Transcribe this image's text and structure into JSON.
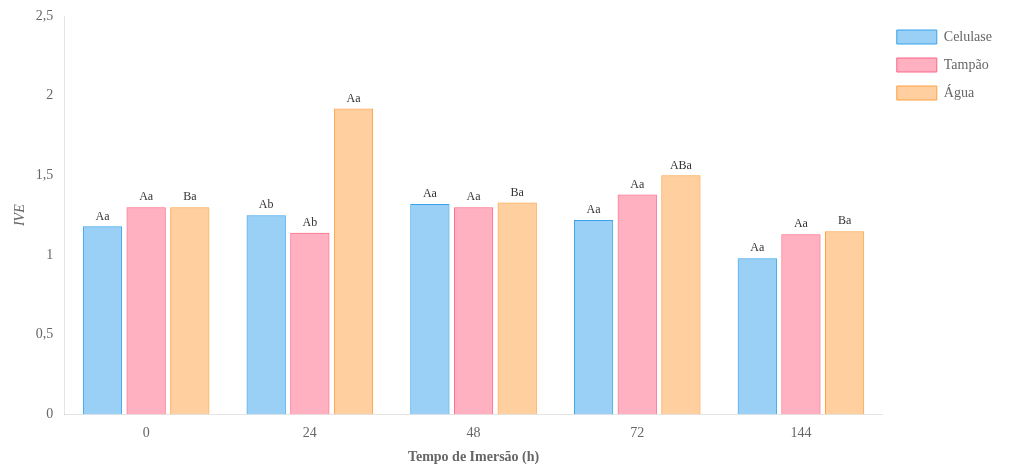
{
  "chart_data": {
    "type": "bar",
    "x_label": "Tempo de Imersão (h)",
    "y_label": "IVE",
    "categories": [
      "0",
      "24",
      "48",
      "72",
      "144"
    ],
    "series": [
      {
        "name": "Celulase",
        "values": [
          1.18,
          1.25,
          1.32,
          1.22,
          0.98
        ],
        "annotations": [
          "Aa",
          "Ab",
          "Aa",
          "Aa",
          "Aa"
        ]
      },
      {
        "name": "Tampão",
        "values": [
          1.3,
          1.14,
          1.3,
          1.38,
          1.13
        ],
        "annotations": [
          "Aa",
          "Ab",
          "Aa",
          "Aa",
          "Aa"
        ]
      },
      {
        "name": "Água",
        "values": [
          1.3,
          1.92,
          1.33,
          1.5,
          1.15
        ],
        "annotations": [
          "Ba",
          "Aa",
          "Ba",
          "ABa",
          "Ba"
        ]
      }
    ],
    "ylim": [
      0,
      2.5
    ],
    "yticks": [
      0,
      {
        "value": 0.5,
        "label": "0,5"
      },
      1,
      {
        "value": 1.5,
        "label": "1,5"
      },
      2,
      {
        "value": 2.5,
        "label": "2,5"
      }
    ],
    "grid": false,
    "legend": "right"
  }
}
